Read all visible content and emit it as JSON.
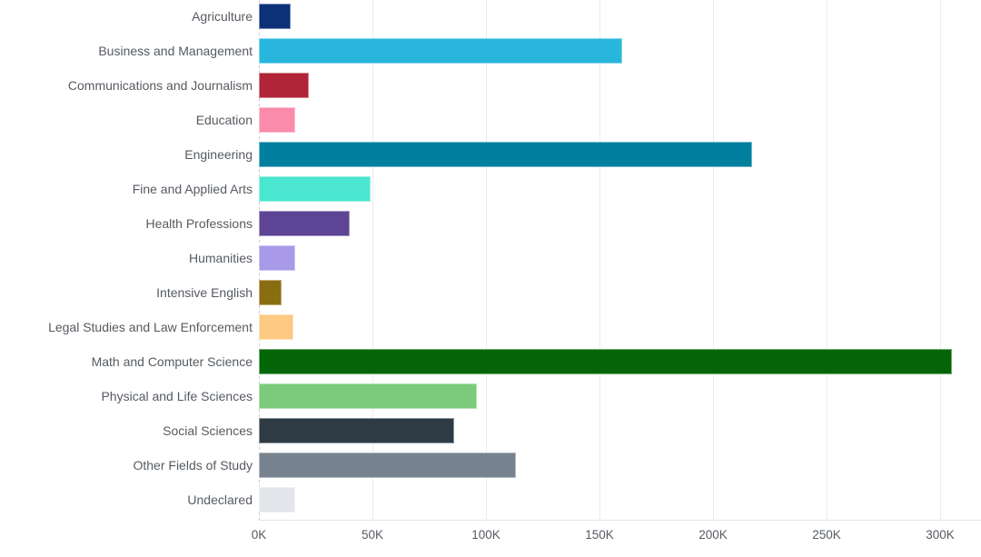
{
  "chart_style": {
    "background": "#ffffff",
    "label_color": "#565b61",
    "gridline_color": "#ececee",
    "zero_line_color": "#c9cdd1",
    "axis_line_color": "#e3e3e5"
  },
  "chart_data": {
    "type": "bar",
    "orientation": "horizontal",
    "title": "",
    "xlabel": "",
    "ylabel": "",
    "value_unit": "K",
    "x_axis": {
      "min_k": 0,
      "max_k": 318,
      "tick_interval_k": 50,
      "tick_labels": [
        "0K",
        "50K",
        "100K",
        "150K",
        "200K",
        "250K",
        "300K"
      ]
    },
    "grid": "vertical gridlines every 50K, dotted zero line, light bottom axis line",
    "legend": "none",
    "categories": [
      "Agriculture",
      "Business and Management",
      "Communications and Journalism",
      "Education",
      "Engineering",
      "Fine and Applied Arts",
      "Health Professions",
      "Humanities",
      "Intensive English",
      "Legal Studies and Law Enforcement",
      "Math and Computer Science",
      "Physical and Life Sciences",
      "Social Sciences",
      "Other Fields of Study",
      "Undeclared"
    ],
    "values_k": [
      14,
      160,
      22,
      16,
      217,
      49,
      40,
      16,
      10,
      15,
      305,
      96,
      86,
      113,
      16
    ],
    "colors": [
      "#0c3179",
      "#29b6dc",
      "#b22437",
      "#fa8bab",
      "#00809e",
      "#4ae6d0",
      "#5e4494",
      "#a89ae8",
      "#8a6d10",
      "#fcca82",
      "#046608",
      "#7bcb7b",
      "#2e3b44",
      "#76838f",
      "#e2e6ea"
    ]
  }
}
